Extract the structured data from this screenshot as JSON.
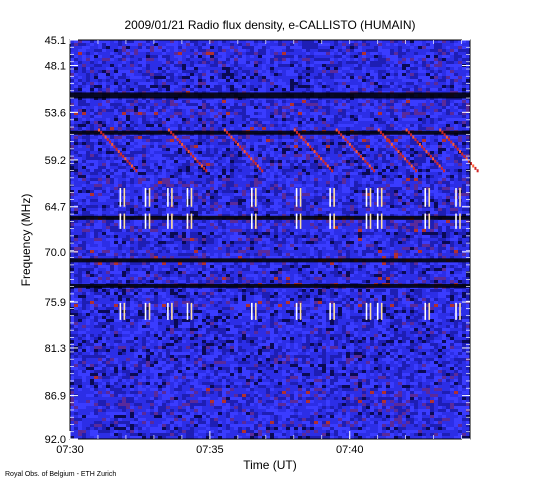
{
  "chart_data": {
    "type": "heatmap",
    "title": "2009/01/21  Radio flux density, e-CALLISTO (HUMAIN)",
    "xlabel": "Time (UT)",
    "ylabel": "Frequency (MHz)",
    "x_ticks": [
      "07:30",
      "07:35",
      "07:40"
    ],
    "x_range": [
      "07:30",
      "07:44.3"
    ],
    "y_ticks": [
      "45.1",
      "48.1",
      "53.6",
      "59.2",
      "64.7",
      "70.0",
      "75.9",
      "81.3",
      "86.9",
      "92.0"
    ],
    "y_range": [
      45.1,
      92.0
    ],
    "y_inverted": true,
    "colormap": [
      "#000000",
      "#1a1aa8",
      "#2f33ff",
      "#d03020",
      "#ff4a20",
      "#ffffff"
    ],
    "features": {
      "dark_bands_mhz": [
        51.5,
        56.0,
        66.0,
        71.0,
        74.0
      ],
      "bright_bursts_min": [
        1.8,
        2.7,
        3.5,
        4.2,
        6.5,
        8.1,
        9.3,
        10.6,
        11.0,
        12.7,
        13.8
      ],
      "burst_freqs_mhz": [
        [
          62.5,
          64.7
        ],
        [
          65.5,
          67.3
        ],
        [
          76.0,
          78.0
        ]
      ],
      "drifting_features_start_min": [
        1.0,
        3.5,
        5.5,
        8.0,
        9.5,
        11.0,
        12.0,
        13.2
      ]
    }
  },
  "footer": {
    "credit": "Royal Obs. of Belgium - ETH Zurich"
  }
}
